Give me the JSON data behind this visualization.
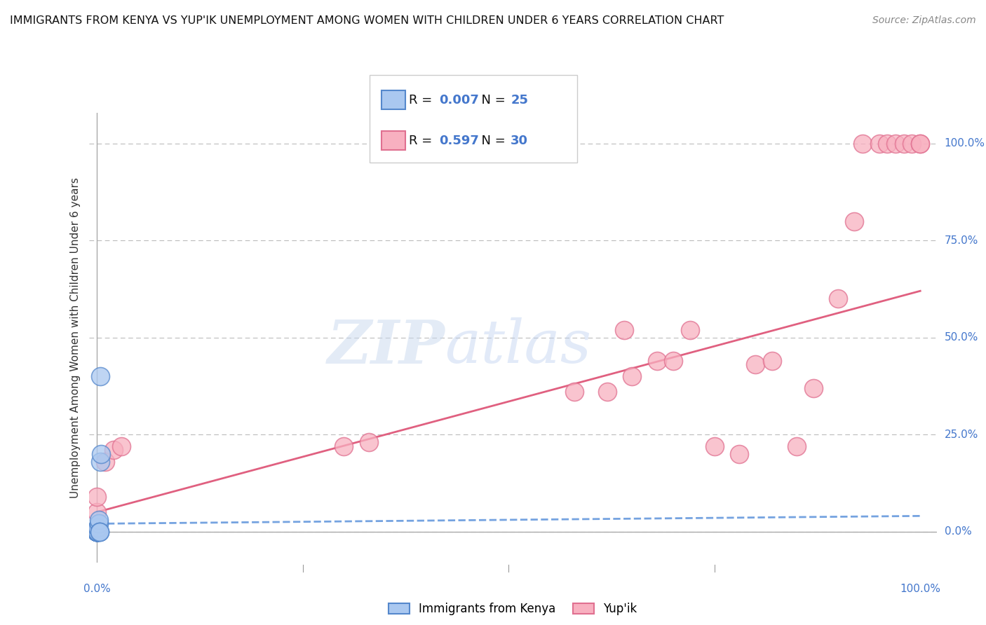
{
  "title": "IMMIGRANTS FROM KENYA VS YUP'IK UNEMPLOYMENT AMONG WOMEN WITH CHILDREN UNDER 6 YEARS CORRELATION CHART",
  "source": "Source: ZipAtlas.com",
  "ylabel": "Unemployment Among Women with Children Under 6 years",
  "watermark_zip": "ZIP",
  "watermark_atlas": "atlas",
  "legend1_label": "Immigrants from Kenya",
  "legend2_label": "Yup'ik",
  "R1": 0.007,
  "N1": 25,
  "R2": 0.597,
  "N2": 30,
  "color_kenya": "#aac8f0",
  "color_yupik": "#f8b0c0",
  "color_kenya_edge": "#5588cc",
  "color_yupik_edge": "#e07090",
  "color_kenya_line": "#6699dd",
  "color_yupik_line": "#e06080",
  "ytick_labels": [
    "0.0%",
    "25.0%",
    "50.0%",
    "75.0%",
    "100.0%"
  ],
  "ytick_values": [
    0.0,
    0.25,
    0.5,
    0.75,
    1.0
  ],
  "xlim": [
    -0.01,
    1.02
  ],
  "ylim": [
    -0.08,
    1.08
  ],
  "kenya_x": [
    0.0,
    0.0,
    0.0,
    0.0,
    0.0,
    0.0,
    0.0,
    0.0,
    0.0,
    0.0,
    0.001,
    0.001,
    0.001,
    0.001,
    0.001,
    0.001,
    0.001,
    0.002,
    0.002,
    0.002,
    0.003,
    0.003,
    0.003,
    0.004,
    0.005
  ],
  "kenya_y": [
    0.0,
    0.0,
    0.0,
    0.0,
    0.0,
    0.0,
    0.0,
    0.0,
    0.0,
    0.0,
    0.0,
    0.0,
    0.0,
    0.0,
    0.0,
    0.01,
    0.01,
    0.02,
    0.02,
    0.03,
    0.0,
    0.0,
    0.0,
    0.18,
    0.2
  ],
  "kenya_outlier_x": [
    0.004
  ],
  "kenya_outlier_y": [
    0.4
  ],
  "yupik_x": [
    0.0,
    0.0,
    0.01,
    0.02,
    0.03,
    0.3,
    0.33,
    0.58,
    0.62,
    0.64,
    0.65,
    0.68,
    0.7,
    0.72,
    0.75,
    0.78,
    0.8,
    0.82,
    0.85,
    0.87,
    0.9,
    0.92,
    0.93,
    0.95,
    0.96,
    0.97,
    0.98,
    0.99,
    1.0,
    1.0
  ],
  "yupik_y": [
    0.05,
    0.09,
    0.18,
    0.21,
    0.22,
    0.22,
    0.23,
    0.36,
    0.36,
    0.52,
    0.4,
    0.44,
    0.44,
    0.52,
    0.22,
    0.2,
    0.43,
    0.44,
    0.22,
    0.37,
    0.6,
    0.8,
    1.0,
    1.0,
    1.0,
    1.0,
    1.0,
    1.0,
    1.0,
    1.0
  ],
  "kenya_trendline_x": [
    0.0,
    1.0
  ],
  "kenya_trendline_y": [
    0.02,
    0.04
  ],
  "yupik_trendline_x": [
    0.0,
    1.0
  ],
  "yupik_trendline_y": [
    0.05,
    0.62
  ],
  "background_color": "#ffffff",
  "grid_color": "#bbbbbb",
  "axis_color": "#4477cc",
  "text_color": "#333333"
}
